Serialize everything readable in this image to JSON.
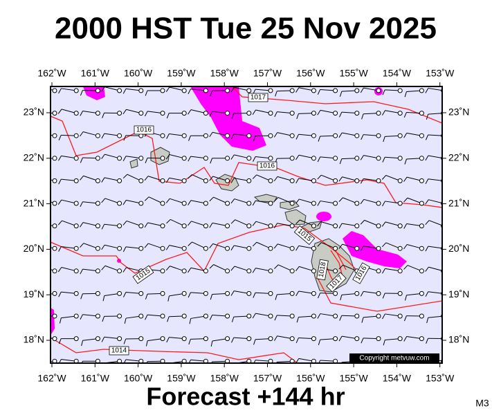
{
  "title": "2000 HST Tue 25 Nov 2025",
  "map": {
    "lon_ticks": [
      "162˚W",
      "161˚W",
      "160˚W",
      "159˚W",
      "158˚W",
      "157˚W",
      "156˚W",
      "155˚W",
      "154˚W",
      "153˚W"
    ],
    "lat_ticks": [
      "23˚N",
      "22˚N",
      "21˚N",
      "20˚N",
      "19˚N",
      "18˚N"
    ],
    "isobar_labels": [
      "1017",
      "1016",
      "1016",
      "1015",
      "1015",
      "1014",
      "1018",
      "1017",
      "1016"
    ],
    "copyright": "Copyright metvuw.com"
  },
  "footer": "Forecast +144 hr",
  "code": "M3"
}
